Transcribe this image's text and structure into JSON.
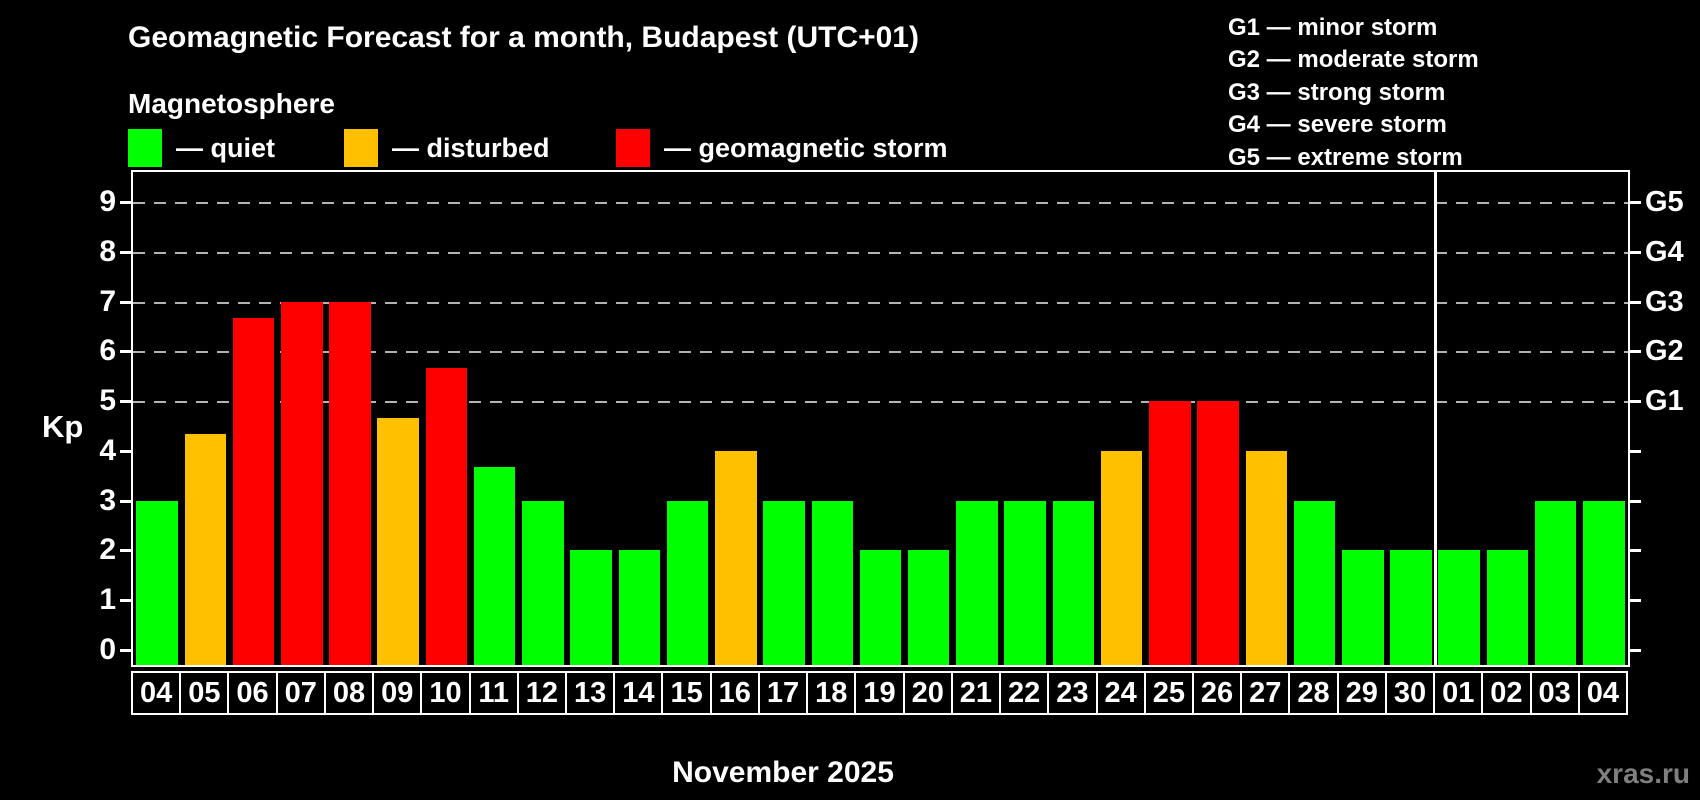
{
  "header": {
    "title": "Geomagnetic Forecast for a month, Budapest (UTC+01)"
  },
  "legend": {
    "title": "Magnetosphere",
    "items": [
      {
        "id": "quiet",
        "label": "— quiet",
        "color": "#00ff00"
      },
      {
        "id": "disturbed",
        "label": "— disturbed",
        "color": "#ffc000"
      },
      {
        "id": "storm",
        "label": "— geomagnetic storm",
        "color": "#ff0000"
      }
    ]
  },
  "storm_scale": {
    "items": [
      "G1 — minor storm",
      "G2 — moderate storm",
      "G3 — strong storm",
      "G4 — severe storm",
      "G5 — extreme storm"
    ]
  },
  "watermark": "xras.ru",
  "chart_data": {
    "type": "bar",
    "title": "Geomagnetic Forecast for a month, Budapest (UTC+01)",
    "xlabel": "November 2025",
    "ylabel": "Kp",
    "ylim": [
      0,
      9
    ],
    "yticks": [
      0,
      1,
      2,
      3,
      4,
      5,
      6,
      7,
      8,
      9
    ],
    "grid": "dashed gray horizontal lines only at storm levels",
    "gridline_levels": [
      5,
      6,
      7,
      8,
      9
    ],
    "gridline_color": "#b3b3b3",
    "right_axis": {
      "labels": [
        "G1",
        "G2",
        "G3",
        "G4",
        "G5"
      ],
      "levels": [
        5,
        6,
        7,
        8,
        9
      ]
    },
    "legend_position": "top-left",
    "series_colors": {
      "quiet": "#00ff00",
      "disturbed": "#ffc000",
      "storm": "#ff0000"
    },
    "month_separator_after_index": 26,
    "bars": [
      {
        "day": "04",
        "kp": 3,
        "status": "quiet"
      },
      {
        "day": "05",
        "kp": 4.33,
        "status": "disturbed"
      },
      {
        "day": "06",
        "kp": 6.67,
        "status": "storm"
      },
      {
        "day": "07",
        "kp": 7,
        "status": "storm"
      },
      {
        "day": "08",
        "kp": 7,
        "status": "storm"
      },
      {
        "day": "09",
        "kp": 4.67,
        "status": "disturbed"
      },
      {
        "day": "10",
        "kp": 5.67,
        "status": "storm"
      },
      {
        "day": "11",
        "kp": 3.67,
        "status": "quiet"
      },
      {
        "day": "12",
        "kp": 3,
        "status": "quiet"
      },
      {
        "day": "13",
        "kp": 2,
        "status": "quiet"
      },
      {
        "day": "14",
        "kp": 2,
        "status": "quiet"
      },
      {
        "day": "15",
        "kp": 3,
        "status": "quiet"
      },
      {
        "day": "16",
        "kp": 4,
        "status": "disturbed"
      },
      {
        "day": "17",
        "kp": 3,
        "status": "quiet"
      },
      {
        "day": "18",
        "kp": 3,
        "status": "quiet"
      },
      {
        "day": "19",
        "kp": 2,
        "status": "quiet"
      },
      {
        "day": "20",
        "kp": 2,
        "status": "quiet"
      },
      {
        "day": "21",
        "kp": 3,
        "status": "quiet"
      },
      {
        "day": "22",
        "kp": 3,
        "status": "quiet"
      },
      {
        "day": "23",
        "kp": 3,
        "status": "quiet"
      },
      {
        "day": "24",
        "kp": 4,
        "status": "disturbed"
      },
      {
        "day": "25",
        "kp": 5,
        "status": "storm"
      },
      {
        "day": "26",
        "kp": 5,
        "status": "storm"
      },
      {
        "day": "27",
        "kp": 4,
        "status": "disturbed"
      },
      {
        "day": "28",
        "kp": 3,
        "status": "quiet"
      },
      {
        "day": "29",
        "kp": 2,
        "status": "quiet"
      },
      {
        "day": "30",
        "kp": 2,
        "status": "quiet"
      },
      {
        "day": "01",
        "kp": 2,
        "status": "quiet"
      },
      {
        "day": "02",
        "kp": 2,
        "status": "quiet"
      },
      {
        "day": "03",
        "kp": 3,
        "status": "quiet"
      },
      {
        "day": "04",
        "kp": 3,
        "status": "quiet"
      }
    ]
  }
}
